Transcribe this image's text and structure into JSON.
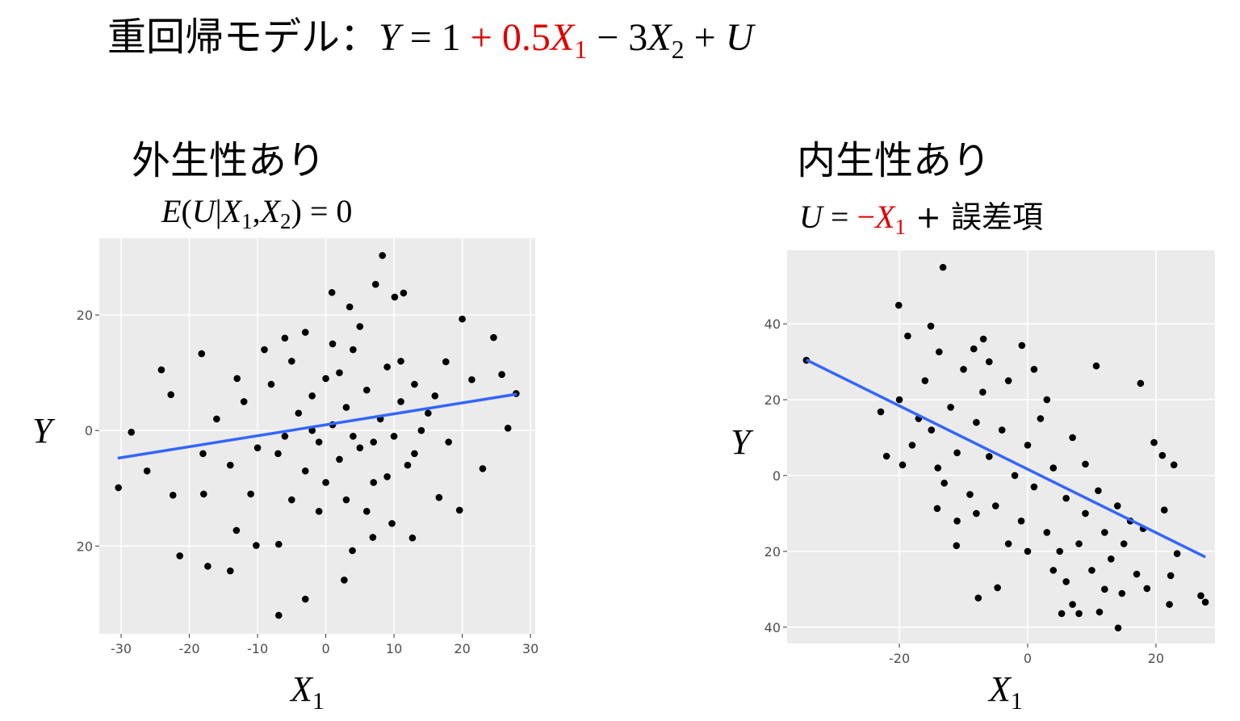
{
  "title": [
    "重回帰モデル：",
    "Y",
    " = 1 ",
    "+ 0.5",
    "X",
    "1",
    " − 3",
    "X",
    "2",
    " + ",
    "U"
  ],
  "chart_data": [
    {
      "type": "scatter",
      "title": "外生性あり",
      "subtitle": [
        "E",
        "(",
        "U",
        "|",
        "X",
        "1",
        ",",
        "X",
        "2",
        ") = 0"
      ],
      "xlabel": [
        "X",
        "1"
      ],
      "ylabel": "Y",
      "xlim": [
        -33.2,
        30.7
      ],
      "ylim": [
        -35.2,
        33.3
      ],
      "xticks": [
        -30,
        -20,
        -10,
        0,
        10,
        20,
        30
      ],
      "yticks": [
        {
          "value": -20,
          "label": "20"
        },
        0,
        20
      ],
      "grid": true,
      "series": [
        {
          "type": "scatter",
          "color": "#000000",
          "x": [
            -30.4,
            -28.5,
            -26.2,
            -24.1,
            -22.7,
            -22.4,
            -21.4,
            -18.2,
            -17.3,
            -14,
            -10.2,
            -6.9,
            -6.9,
            -3,
            2.7,
            3.9,
            8.3,
            7.3,
            0.9,
            3.5,
            10.1,
            11.4,
            20,
            24.6,
            25.8,
            26.7,
            27.9,
            23,
            19.6,
            16.6,
            12.7,
            9.7,
            6.9,
            -13.1,
            -17.9,
            21.4,
            17.6,
            -12,
            -10,
            -8,
            -6,
            -5,
            -4,
            -3,
            -2,
            -1,
            0,
            1,
            2,
            3,
            4,
            5,
            6,
            7,
            8,
            9,
            10,
            11,
            12,
            13,
            14,
            15,
            -14,
            -13,
            -11,
            -9,
            -7,
            -5,
            -3,
            -1,
            1,
            3,
            5,
            7,
            9,
            11,
            13,
            -16,
            -18,
            16,
            18,
            -2,
            0,
            2,
            4,
            6,
            -6
          ],
          "values": [
            -9.9,
            -0.3,
            -7,
            10.5,
            6.2,
            -11.2,
            -21.7,
            13.3,
            -23.5,
            -24.3,
            -19.9,
            -19.7,
            -32,
            -29.2,
            -25.9,
            -20.8,
            30.3,
            25.3,
            23.9,
            21.4,
            23.1,
            23.8,
            19.3,
            16.1,
            9.7,
            0.4,
            6.4,
            -6.6,
            -13.8,
            -11.6,
            -18.6,
            -16.1,
            -18.5,
            -17.3,
            -11,
            8.8,
            11.9,
            5,
            -3,
            8,
            -1,
            12,
            3,
            -7,
            6,
            -2,
            9,
            1,
            -5,
            4,
            14,
            -3,
            7,
            -9,
            2,
            11,
            -1,
            5,
            -6,
            8,
            0,
            3,
            -6,
            9,
            -11,
            14,
            -4,
            -12,
            17,
            -14,
            15,
            -12,
            18,
            -2,
            -8,
            12,
            -4,
            2,
            -4,
            6,
            -2,
            0,
            -9,
            10,
            -1,
            -14,
            16
          ]
        },
        {
          "type": "line",
          "color": "#3366ff",
          "x": [
            -30.5,
            28
          ],
          "values": [
            -4.8,
            6.3
          ]
        }
      ]
    },
    {
      "type": "scatter",
      "title": "内生性あり",
      "subtitle": [
        "U",
        " = ",
        "−",
        "X",
        "1",
        " + 誤差項"
      ],
      "xlabel": [
        "X",
        "1"
      ],
      "ylabel": "Y",
      "xlim": [
        -37.5,
        29.2
      ],
      "ylim": [
        -44.3,
        59.4
      ],
      "xticks": [
        -20,
        0,
        20
      ],
      "yticks": [
        {
          "value": -40,
          "label": "40"
        },
        {
          "value": -20,
          "label": "20"
        },
        0,
        20,
        40
      ],
      "grid": true,
      "series": [
        {
          "type": "scatter",
          "color": "#000000",
          "x": [
            -34.5,
            -13.2,
            -20.1,
            -18.7,
            -15.1,
            -13.8,
            -22.9,
            -22,
            -19.5,
            -11.1,
            -7.7,
            5.3,
            8,
            11.2,
            14.1,
            14.7,
            18.6,
            22.1,
            27,
            27.7,
            22.8,
            21,
            17.6,
            10.7,
            19.7,
            21.3,
            23.3,
            22.3,
            -8.4,
            -6.9,
            -0.9,
            -4.7,
            -14.1,
            -20,
            -18,
            -16,
            -15,
            -14,
            -12,
            -11,
            -10,
            -9,
            -8,
            -7,
            -6,
            -5,
            -4,
            -3,
            -2,
            -1,
            0,
            1,
            2,
            3,
            4,
            5,
            6,
            7,
            8,
            9,
            10,
            11,
            12,
            13,
            14,
            15,
            16,
            17,
            18,
            -13,
            -6,
            0,
            3,
            6,
            9,
            12,
            -17,
            -8,
            1,
            4,
            -3,
            7,
            -11
          ],
          "values": [
            30.4,
            54.9,
            44.9,
            36.8,
            39.4,
            32.6,
            16.8,
            5.1,
            2.8,
            -18.5,
            -32.3,
            -36.4,
            -36.4,
            -36,
            -40.2,
            -31.1,
            -29.8,
            -34,
            -31.7,
            -33.4,
            2.8,
            5.3,
            24.3,
            28.9,
            8.7,
            -9.1,
            -20.6,
            -26.4,
            33.4,
            36,
            34.3,
            -29.6,
            -8.7,
            20,
            8,
            25,
            12,
            2,
            18,
            6,
            28,
            -5,
            14,
            22,
            5,
            -8,
            12,
            25,
            0,
            -12,
            8,
            -3,
            15,
            -15,
            2,
            -20,
            -6,
            10,
            -18,
            -10,
            -25,
            -4,
            -15,
            -22,
            -8,
            -18,
            -12,
            -26,
            -14,
            -2,
            30,
            -20,
            20,
            -28,
            3,
            -30,
            15,
            -10,
            28,
            -25,
            -18,
            -34,
            -12
          ]
        },
        {
          "type": "line",
          "color": "#3366ff",
          "x": [
            -34.5,
            27.7
          ],
          "values": [
            30.5,
            -21.5
          ]
        }
      ]
    }
  ]
}
